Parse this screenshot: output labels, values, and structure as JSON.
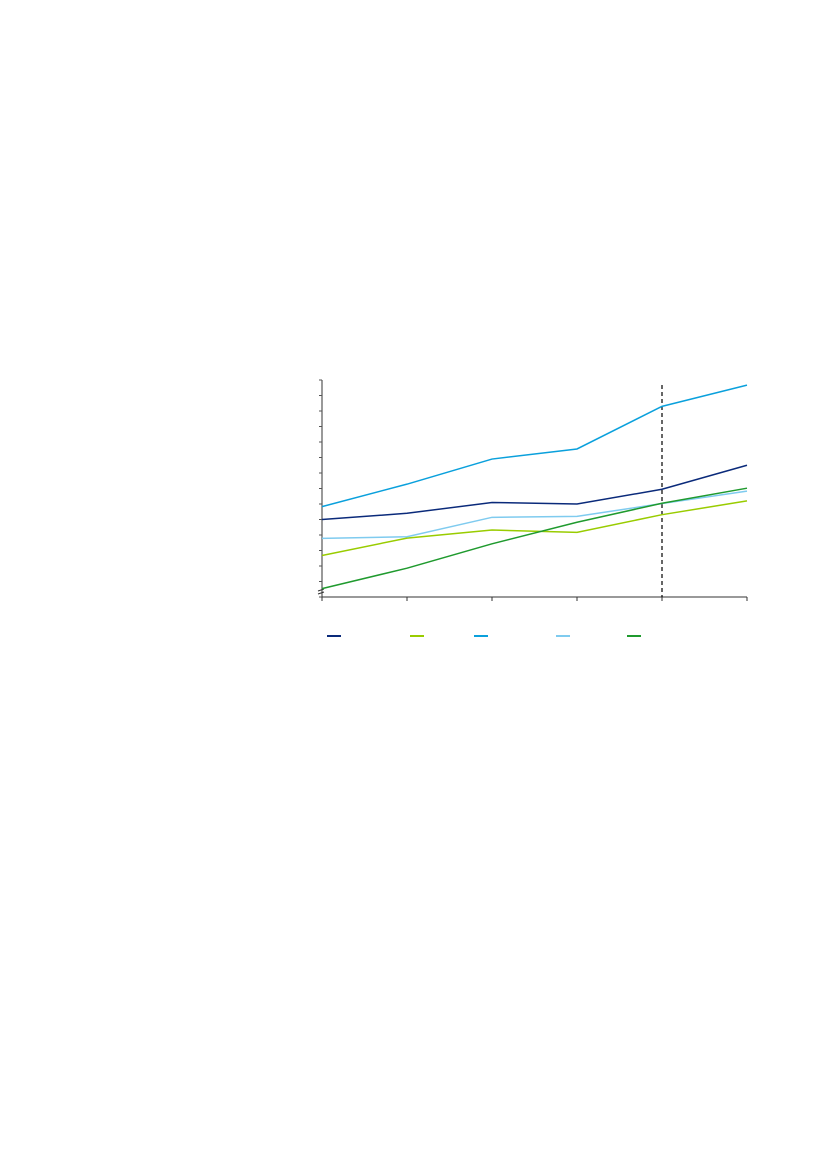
{
  "chart_data": {
    "type": "line",
    "title": "",
    "xlabel": "",
    "ylabel": "",
    "x": [
      0,
      1,
      2,
      3,
      4,
      5
    ],
    "ylim": [
      0,
      14
    ],
    "y_tick_count": 15,
    "y_axis_break": true,
    "grid": false,
    "vertical_reference_line_at_x": 4,
    "legend_placement": "bottom",
    "series": [
      {
        "color": "#0a2a7a",
        "values": [
          5.0,
          5.4,
          6.1,
          6.0,
          6.95,
          8.5
        ]
      },
      {
        "color": "#99cc00",
        "values": [
          2.68,
          3.8,
          4.32,
          4.17,
          5.31,
          6.2
        ]
      },
      {
        "color": "#0aa0dc",
        "values": [
          5.83,
          7.28,
          8.9,
          9.55,
          12.3,
          13.67
        ]
      },
      {
        "color": "#7fcbef",
        "values": [
          3.78,
          3.89,
          5.14,
          5.2,
          6.03,
          6.83
        ]
      },
      {
        "color": "#1f9a2e",
        "values": [
          0.54,
          1.86,
          3.43,
          4.82,
          6.05,
          7.02
        ]
      }
    ]
  }
}
